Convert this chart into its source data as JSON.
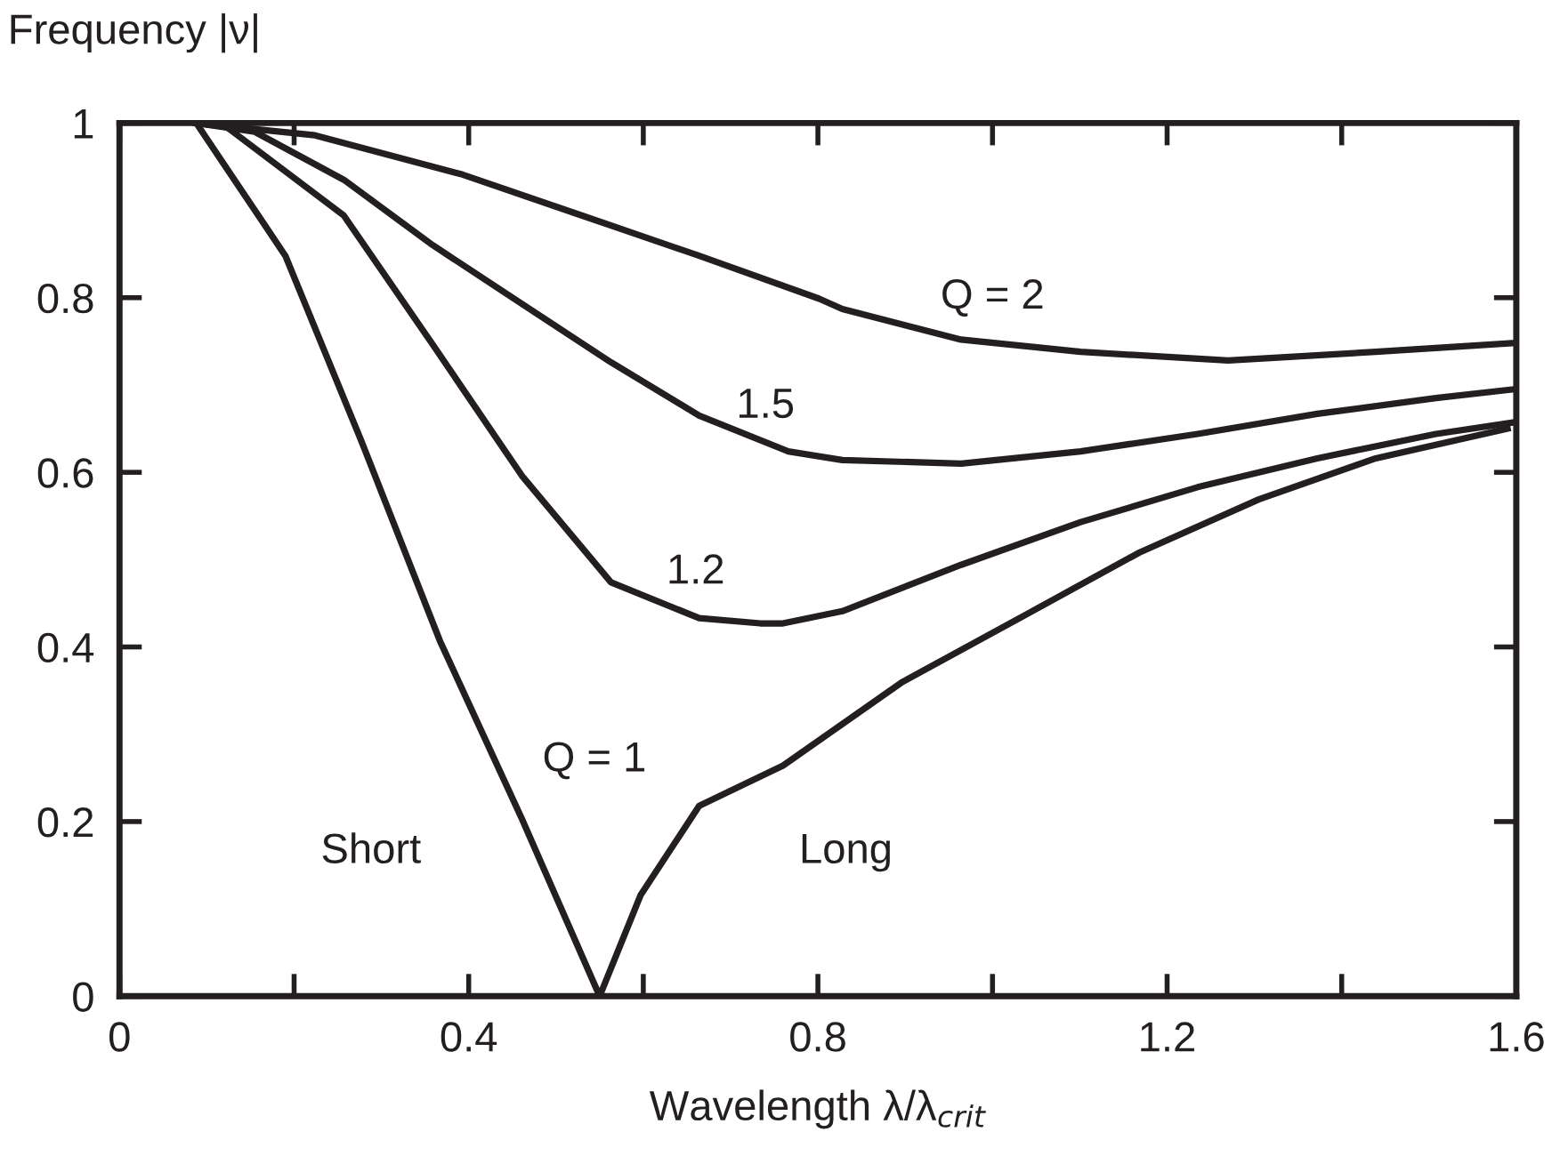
{
  "chart_data": {
    "type": "line",
    "ylabel": "Frequency |ν|",
    "xlabel": "Wavelength λ/λ$_{crit}$",
    "xlim": [
      0,
      1.6
    ],
    "ylim": [
      0,
      1
    ],
    "xticks": [
      0,
      {
        "value": 0.2,
        "label": null
      },
      0.4,
      {
        "value": 0.6,
        "label": null
      },
      0.8,
      {
        "value": 1.0,
        "label": null
      },
      1.2,
      {
        "value": 1.4,
        "label": null
      },
      1.6
    ],
    "yticks": [
      0,
      0.2,
      0.4,
      0.6,
      0.8,
      {
        "value": 1,
        "label": "1"
      }
    ],
    "grid": false,
    "legend": false,
    "marker": "none",
    "line_style": "solid",
    "series": [
      {
        "color": "#231f20",
        "x": [
          0.088,
          0.19,
          0.277,
          0.367,
          0.461,
          0.55,
          0.597,
          0.664,
          0.76,
          0.897,
          1.031,
          1.168,
          1.305,
          1.439,
          1.59
        ],
        "values": [
          1,
          0.848,
          0.636,
          0.407,
          0.203,
          0,
          0.116,
          0.218,
          0.264,
          0.36,
          0.433,
          0.508,
          0.569,
          0.616,
          0.65
        ]
      },
      {
        "color": "#231f20",
        "x": [
          0.088,
          0.122,
          0.257,
          0.359,
          0.461,
          0.563,
          0.664,
          0.734,
          0.76,
          0.828,
          0.964,
          1.101,
          1.235,
          1.372,
          1.508,
          1.596
        ],
        "values": [
          1,
          0.996,
          0.894,
          0.746,
          0.596,
          0.474,
          0.433,
          0.427,
          0.427,
          0.441,
          0.494,
          0.543,
          0.583,
          0.616,
          0.644,
          0.657
        ]
      },
      {
        "color": "#231f20",
        "x": [
          0.088,
          0.155,
          0.257,
          0.359,
          0.461,
          0.563,
          0.664,
          0.766,
          0.828,
          0.964,
          1.101,
          1.235,
          1.372,
          1.508,
          1.596
        ],
        "values": [
          1,
          0.99,
          0.935,
          0.86,
          0.793,
          0.726,
          0.665,
          0.624,
          0.614,
          0.61,
          0.624,
          0.644,
          0.667,
          0.685,
          0.695
        ]
      },
      {
        "color": "#231f20",
        "x": [
          0.088,
          0.224,
          0.393,
          0.53,
          0.664,
          0.801,
          0.828,
          0.964,
          1.101,
          1.27,
          1.439,
          1.596
        ],
        "values": [
          1,
          0.986,
          0.941,
          0.894,
          0.848,
          0.799,
          0.787,
          0.752,
          0.738,
          0.728,
          0.738,
          0.748
        ]
      }
    ],
    "annotations": [
      "Q = 2",
      "1.5",
      "1.2",
      "Q = 1",
      "Short",
      "Long"
    ]
  }
}
